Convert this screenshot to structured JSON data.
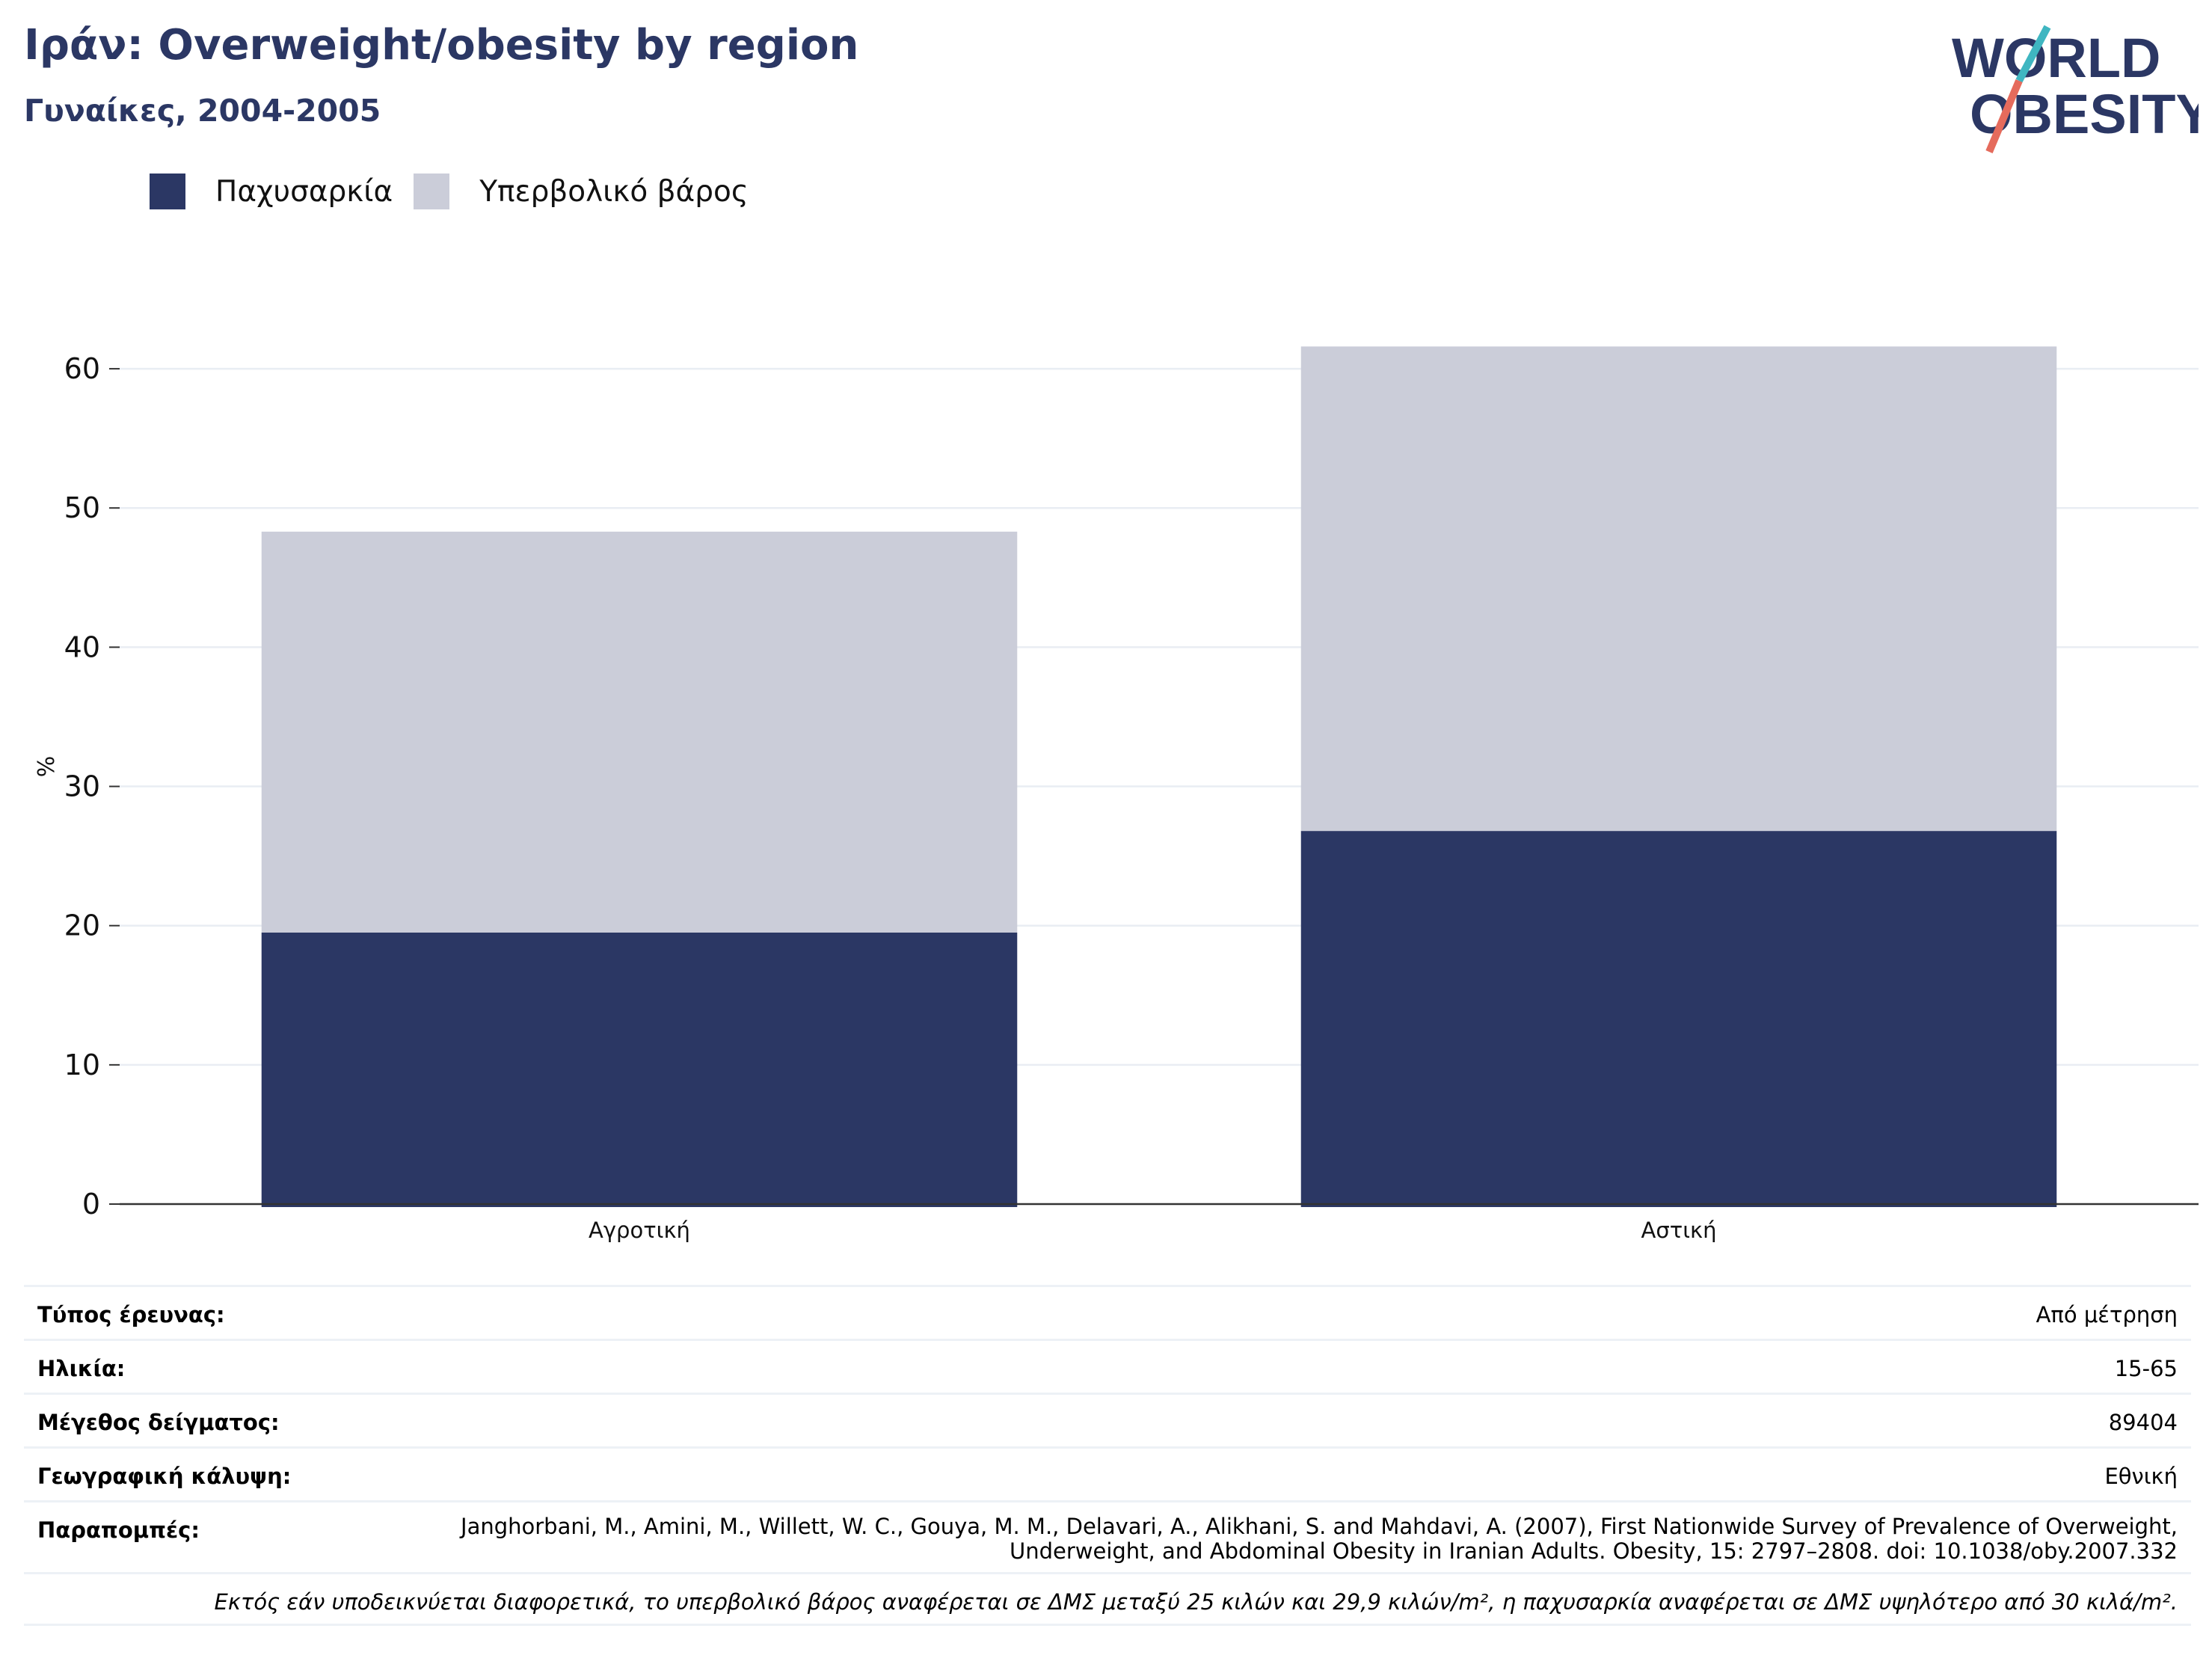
{
  "header": {
    "title": "Ιράν: Overweight/obesity by region",
    "subtitle": "Γυναίκες, 2004-2005"
  },
  "logo": {
    "line1": "WORLD",
    "line2": "OBESITY"
  },
  "colors": {
    "obesity": "#2b3764",
    "overweight": "#cbcdd9",
    "title": "#2b3764",
    "logo_teal": "#3fb6c1",
    "logo_red": "#e56b5c"
  },
  "chart_data": {
    "type": "bar",
    "stacked": true,
    "categories": [
      "Αγροτική",
      "Αστική"
    ],
    "series": [
      {
        "name": "Παχυσαρκία",
        "values": [
          19.5,
          26.8
        ]
      },
      {
        "name": "Υπερβολικό βάρος",
        "values": [
          28.8,
          34.8
        ]
      }
    ],
    "ylabel": "%",
    "ylim": [
      0,
      65
    ],
    "yticks": [
      0,
      10,
      20,
      30,
      40,
      50,
      60
    ],
    "grid": true,
    "legend": "top-left"
  },
  "meta": [
    {
      "key": "Τύπος έρευνας:",
      "value": "Από μέτρηση"
    },
    {
      "key": "Ηλικία:",
      "value": "15-65"
    },
    {
      "key": "Μέγεθος δείγματος:",
      "value": "89404"
    },
    {
      "key": "Γεωγραφική κάλυψη:",
      "value": "Εθνική"
    },
    {
      "key": "Παραπομπές:",
      "value": "Janghorbani, M., Amini, M., Willett, W. C., Gouya, M. M., Delavari, A., Alikhani, S. and Mahdavi, A. (2007), First Nationwide Survey of Prevalence of Overweight, Underweight, and Abdominal Obesity in Iranian Adults. Obesity, 15: 2797–2808. doi: 10.1038/oby.2007.332"
    }
  ],
  "note": "Εκτός εάν υποδεικνύεται διαφορετικά, το υπερβολικό βάρος αναφέρεται σε ΔΜΣ μεταξύ 25 κιλών και 29,9 κιλών/m², η παχυσαρκία αναφέρεται σε ΔΜΣ υψηλότερο από 30 κιλά/m²."
}
